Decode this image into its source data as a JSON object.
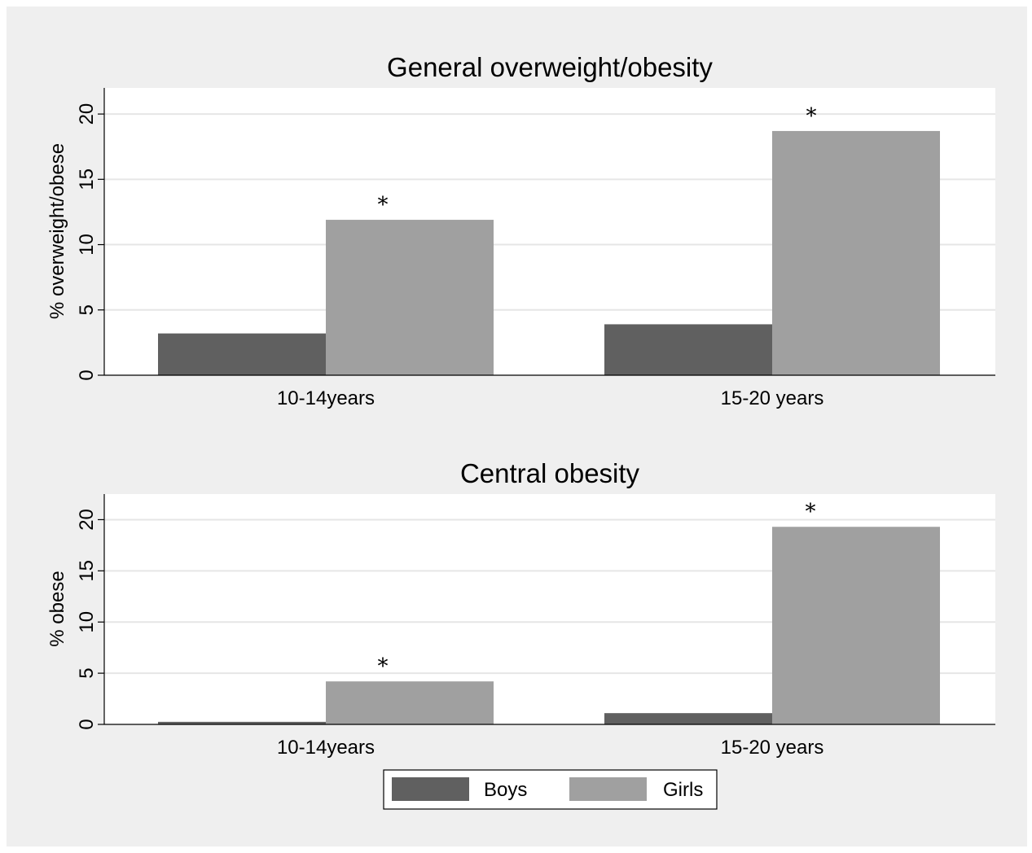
{
  "chart_data": [
    {
      "type": "bar",
      "title": "General overweight/obesity",
      "ylabel": "% overweight/obese",
      "categories": [
        "10-14years",
        "15-20 years"
      ],
      "ylim": [
        0,
        22
      ],
      "yticks": [
        0,
        5,
        10,
        15,
        20
      ],
      "grid": true,
      "series": [
        {
          "name": "Boys",
          "values": [
            3.2,
            3.9
          ]
        },
        {
          "name": "Girls",
          "values": [
            11.9,
            18.7
          ]
        }
      ],
      "annotations": [
        {
          "category": "10-14years",
          "series": "Girls",
          "text": "*"
        },
        {
          "category": "15-20 years",
          "series": "Girls",
          "text": "*"
        }
      ]
    },
    {
      "type": "bar",
      "title": "Central obesity",
      "ylabel": "% obese",
      "categories": [
        "10-14years",
        "15-20 years"
      ],
      "ylim": [
        0,
        22.5
      ],
      "yticks": [
        0,
        5,
        10,
        15,
        20
      ],
      "grid": true,
      "series": [
        {
          "name": "Boys",
          "values": [
            0.25,
            1.1
          ]
        },
        {
          "name": "Girls",
          "values": [
            4.2,
            19.3
          ]
        }
      ],
      "annotations": [
        {
          "category": "10-14years",
          "series": "Girls",
          "text": "*"
        },
        {
          "category": "15-20 years",
          "series": "Girls",
          "text": "*"
        }
      ]
    }
  ],
  "legend": {
    "placement": "bottom-center",
    "items": [
      {
        "label": "Boys",
        "color": "#606060"
      },
      {
        "label": "Girls",
        "color": "#a0a0a0"
      }
    ]
  },
  "colors": {
    "boys": "#606060",
    "girls": "#a0a0a0",
    "plot_bg": "#ffffff",
    "outer_bg": "#efefef",
    "grid": "#e6e6e6"
  }
}
